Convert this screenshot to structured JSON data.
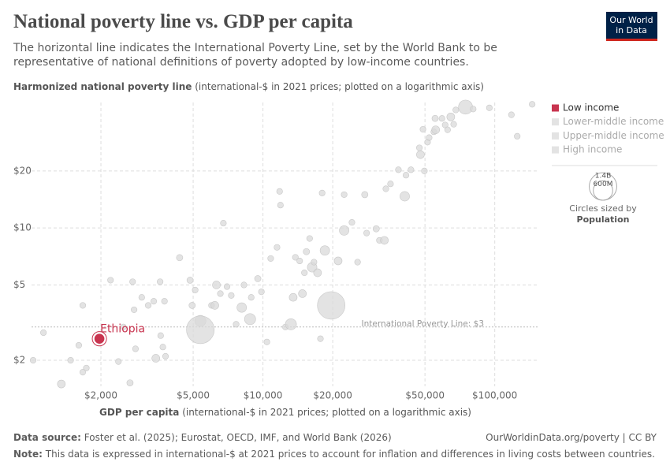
{
  "header": {
    "title": "National poverty line vs. GDP per capita",
    "subtitle": "The horizontal line indicates the International Poverty Line, set by the World Bank to be representative of national definitions of poverty adopted by low-income countries.",
    "logo": [
      "Our World",
      "in Data"
    ]
  },
  "chart_data": {
    "type": "scatter",
    "y_label": "Harmonized national poverty line",
    "y_label_note": "(international-$ in 2021 prices; plotted on a logarithmic axis)",
    "x_label": "GDP per capita",
    "x_label_note": "(international-$ in 2021 prices; plotted on a logarithmic axis)",
    "log_x": true,
    "log_y": true,
    "grid": true,
    "xlim": [
      845,
      153000
    ],
    "ylim": [
      1.39,
      46
    ],
    "xticks": [
      {
        "value": 2000,
        "label": "$2,000"
      },
      {
        "value": 5000,
        "label": "$5,000"
      },
      {
        "value": 10000,
        "label": "$10,000"
      },
      {
        "value": 20000,
        "label": "$20,000"
      },
      {
        "value": 50000,
        "label": "$50,000"
      },
      {
        "value": 100000,
        "label": "$100,000"
      }
    ],
    "yticks": [
      {
        "value": 2,
        "label": "$2"
      },
      {
        "value": 5,
        "label": "$5"
      },
      {
        "value": 10,
        "label": "$10"
      },
      {
        "value": 20,
        "label": "$20"
      }
    ],
    "reference_line": {
      "value": 3,
      "label": "International Poverty Line: $3"
    },
    "muted_color": "#d9d9d9",
    "legend_position": "right",
    "series": [
      {
        "name": "Low income",
        "color": "#c8344f",
        "x": [
          1020,
          1130,
          1350,
          1480,
          1605,
          1670,
          1730,
          1670,
          2200,
          2380,
          2500,
          2670,
          2740,
          2780,
          2820,
          3000
        ],
        "values": [
          2.0,
          2.8,
          1.5,
          2.0,
          2.4,
          3.9,
          1.82,
          1.73,
          5.3,
          1.97,
          3.0,
          1.52,
          5.2,
          3.7,
          2.3,
          4.3
        ],
        "sizes": [
          10,
          10,
          40,
          10,
          10,
          10,
          10,
          10,
          10,
          10,
          10,
          15,
          10,
          10,
          10,
          10
        ]
      },
      {
        "name": "Lower-middle income",
        "color": "#e3e3e3",
        "x": [
          3200,
          3380,
          3450,
          3600,
          3620,
          3700,
          3760,
          3800,
          4370,
          4850,
          4950,
          5100,
          5370,
          5370,
          6000,
          6200,
          6300,
          6550,
          6750,
          7000,
          7300,
          7660,
          8100,
          8280,
          8800,
          8900,
          9500,
          9850,
          10400,
          10800,
          11500,
          11800,
          11900
        ],
        "values": [
          3.9,
          4.1,
          2.05,
          5.2,
          2.7,
          2.35,
          4.1,
          2.1,
          6.97,
          5.3,
          3.9,
          4.7,
          3.23,
          2.9,
          3.9,
          3.9,
          5.0,
          4.5,
          10.6,
          4.9,
          4.4,
          3.1,
          3.8,
          5.0,
          3.3,
          4.3,
          5.4,
          4.6,
          2.5,
          6.9,
          7.9,
          15.6,
          13.2
        ],
        "sizes": [
          10,
          10,
          40,
          10,
          10,
          10,
          10,
          10,
          15,
          15,
          15,
          10,
          130,
          1430,
          10,
          40,
          40,
          10,
          10,
          10,
          10,
          10,
          80,
          10,
          130,
          10,
          15,
          10,
          10,
          10,
          10,
          10,
          10
        ]
      },
      {
        "name": "Upper-middle income",
        "color": "#e3e3e3",
        "x": [
          12500,
          13200,
          13500,
          13800,
          14400,
          14800,
          15100,
          15400,
          15900,
          16300,
          16600,
          17200,
          17700,
          18500,
          18000,
          19700,
          21100,
          22400,
          22400,
          24200,
          25600,
          27500,
          28000
        ],
        "values": [
          3.0,
          3.1,
          4.3,
          7.0,
          6.7,
          4.5,
          5.8,
          7.5,
          8.8,
          6.2,
          6.6,
          5.8,
          2.6,
          7.6,
          15.3,
          3.9,
          6.7,
          9.7,
          15.0,
          10.7,
          6.6,
          15.0,
          9.4
        ],
        "sizes": [
          10,
          130,
          40,
          10,
          10,
          40,
          10,
          15,
          10,
          80,
          10,
          40,
          10,
          80,
          10,
          1410,
          40,
          80,
          10,
          10,
          10,
          15,
          10
        ]
      },
      {
        "name": "High income",
        "color": "#e3e3e3",
        "x": [
          30800,
          31800,
          33400,
          33900,
          35500,
          38400,
          40900,
          41400,
          43500,
          47300,
          47800,
          49000,
          49700,
          51300,
          52100,
          54600,
          55300,
          55600,
          59200,
          61100,
          62600,
          64600,
          66500,
          67900,
          74800,
          80700,
          94800,
          125000,
          145000,
          118000
        ],
        "values": [
          9.9,
          8.6,
          8.6,
          16.1,
          17.1,
          20.3,
          14.7,
          19.0,
          20.3,
          26.5,
          24.4,
          33.2,
          20.0,
          28.4,
          30.0,
          32.2,
          37.9,
          33.0,
          37.9,
          35.0,
          33.0,
          38.6,
          35.3,
          42.0,
          43.5,
          42.5,
          43.1,
          30.5,
          45,
          39.6
        ],
        "sizes": [
          15,
          10,
          40,
          10,
          10,
          10,
          80,
          10,
          10,
          10,
          40,
          10,
          10,
          10,
          10,
          10,
          15,
          40,
          10,
          10,
          10,
          40,
          10,
          10,
          260,
          10,
          10,
          10,
          10,
          10
        ]
      }
    ],
    "highlight": {
      "label": "Ethiopia",
      "x": 1970,
      "y": 2.6,
      "size": 130
    },
    "size_legend": {
      "title": "Circles sized by",
      "variable": "Population",
      "values": [
        {
          "value": 1400,
          "label": "1.4B"
        },
        {
          "value": 600,
          "label": "600M"
        }
      ]
    }
  },
  "footer": {
    "source_label": "Data source:",
    "source": "Foster et al. (2025); Eurostat, OECD, IMF, and World Bank (2026)",
    "url": "OurWorldinData.org/poverty | CC BY",
    "note_label": "Note:",
    "note": "This data is expressed in international-$ at 2021 prices to account for inflation and differences in living costs between countries."
  }
}
